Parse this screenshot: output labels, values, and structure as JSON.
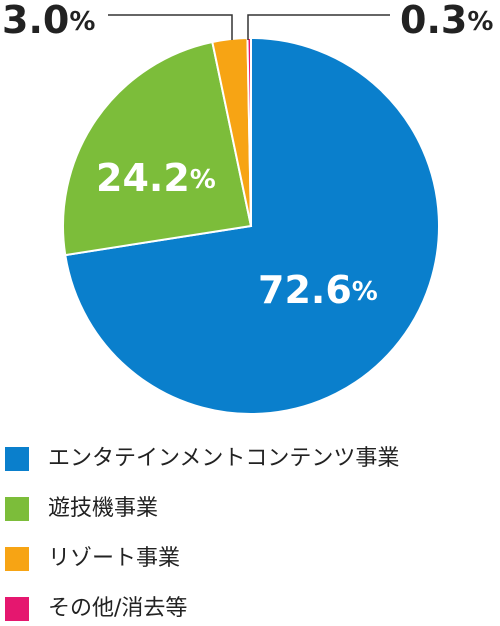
{
  "chart_data": {
    "type": "pie",
    "labels": [
      "エンタテインメントコンテンツ事業",
      "遊技機事業",
      "リゾート事業",
      "その他/消去等"
    ],
    "values": [
      72.6,
      24.2,
      3.0,
      0.3
    ],
    "value_labels": [
      "72.6%",
      "24.2%",
      "3.0%",
      "0.3%"
    ],
    "colors": [
      "#0a7fcc",
      "#7cbd3a",
      "#f7a414",
      "#e5176f"
    ]
  }
}
